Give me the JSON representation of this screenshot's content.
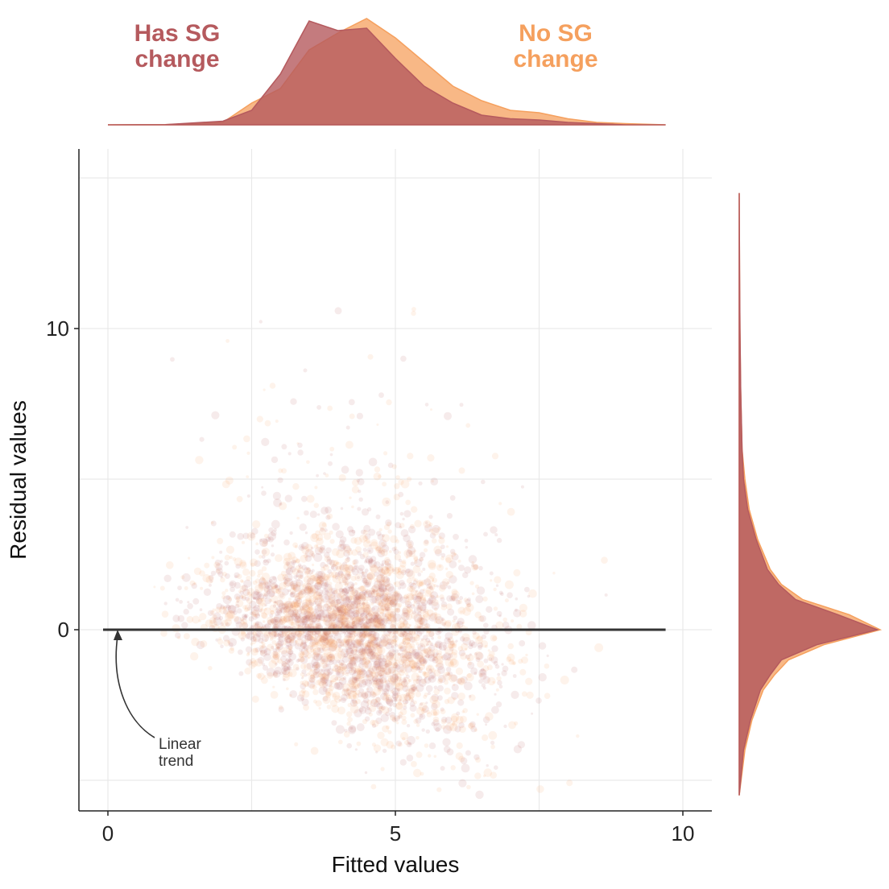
{
  "chart_data": {
    "type": "scatter",
    "title": "",
    "xlabel": "Fitted values",
    "ylabel": "Residual values",
    "xlim": [
      -1,
      10.5
    ],
    "ylim": [
      -6,
      16
    ],
    "xticks": [
      {
        "value": 0,
        "label": "0"
      },
      {
        "value": 5,
        "label": "5"
      },
      {
        "value": 10,
        "label": "10"
      }
    ],
    "yticks": [
      {
        "value": 0,
        "label": "0"
      },
      {
        "value": 10,
        "label": "10"
      }
    ],
    "grid": true,
    "series": [
      {
        "name": "Has SG change",
        "color": "#b55a5e",
        "label_lines": [
          "Has SG",
          "change"
        ]
      },
      {
        "name": "No SG change",
        "color": "#f5a05e",
        "label_lines": [
          "No SG",
          "change"
        ]
      }
    ],
    "trend_line": {
      "x": [
        0,
        9.7
      ],
      "y": [
        0,
        0
      ],
      "color": "#333333"
    },
    "annotation": {
      "lines": [
        "Linear",
        "trend"
      ],
      "points_to": {
        "x": 0.3,
        "y": 0
      }
    },
    "marginal_x": {
      "x": [
        0,
        1,
        2,
        2.5,
        3,
        3.5,
        4,
        4.5,
        5,
        5.5,
        6,
        6.5,
        7,
        7.5,
        8,
        8.5,
        9,
        9.7
      ],
      "has_sg": [
        0,
        0.002,
        0.03,
        0.12,
        0.42,
        0.86,
        0.78,
        0.8,
        0.55,
        0.32,
        0.18,
        0.08,
        0.05,
        0.04,
        0.02,
        0.01,
        0.0,
        0
      ],
      "no_sg": [
        0,
        0.002,
        0.02,
        0.18,
        0.3,
        0.62,
        0.76,
        0.88,
        0.72,
        0.52,
        0.32,
        0.2,
        0.12,
        0.1,
        0.05,
        0.02,
        0.01,
        0
      ]
    },
    "marginal_y": {
      "y": [
        -5.5,
        -4,
        -3,
        -2,
        -1.5,
        -1,
        -0.5,
        0,
        0.5,
        1,
        1.5,
        2,
        3,
        4,
        5,
        6,
        8,
        10,
        12,
        14.5
      ],
      "has_sg": [
        0,
        0.03,
        0.08,
        0.15,
        0.22,
        0.3,
        0.55,
        0.98,
        0.7,
        0.4,
        0.28,
        0.2,
        0.12,
        0.06,
        0.03,
        0.02,
        0.01,
        0.005,
        0.002,
        0
      ],
      "no_sg": [
        0,
        0.04,
        0.09,
        0.17,
        0.25,
        0.35,
        0.6,
        1.0,
        0.78,
        0.45,
        0.3,
        0.22,
        0.13,
        0.07,
        0.04,
        0.02,
        0.01,
        0.005,
        0.002,
        0
      ]
    }
  }
}
